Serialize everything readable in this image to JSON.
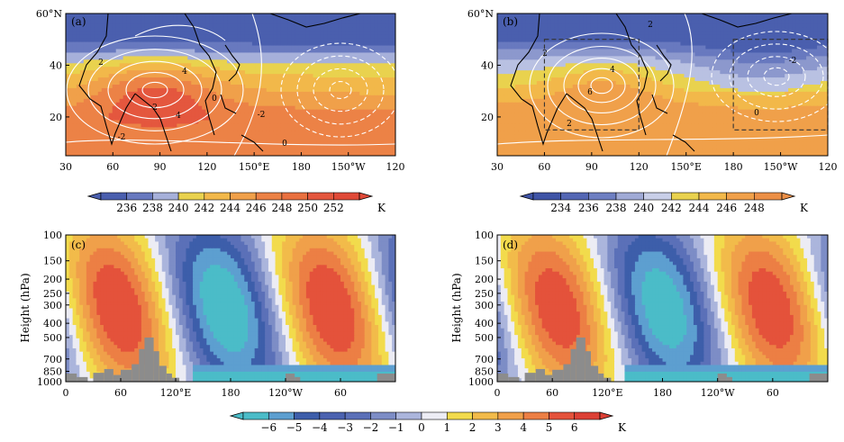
{
  "chart_data": [
    {
      "type": "heatmap",
      "panel_label": "(a)",
      "x_tick_labels": [
        "30",
        "60",
        "90",
        "120",
        "150°E",
        "180",
        "150°W",
        "120"
      ],
      "y_tick_labels": [
        "60°N",
        "40",
        "20"
      ],
      "xlim": [
        30,
        240
      ],
      "ylim": [
        5,
        60
      ],
      "fill_field": {
        "center": [
          85,
          30
        ],
        "peak": 252,
        "south_level": 248,
        "north_level": 236
      },
      "contour_labels": [
        "2",
        "4",
        "-2",
        "0",
        "-2",
        "0",
        "2",
        "4"
      ],
      "colorbar": {
        "ticks": [
          "236",
          "238",
          "240",
          "242",
          "244",
          "246",
          "248",
          "250",
          "252"
        ],
        "unit": "K"
      }
    },
    {
      "type": "heatmap",
      "panel_label": "(b)",
      "x_tick_labels": [
        "30",
        "60",
        "90",
        "120",
        "150°E",
        "180",
        "150°W",
        "120"
      ],
      "y_tick_labels": [
        "60°N",
        "40",
        "20"
      ],
      "xlim": [
        30,
        240
      ],
      "ylim": [
        5,
        60
      ],
      "fill_field": {
        "center": [
          90,
          32
        ],
        "peak": 248,
        "south_level": 246,
        "north_level": 234
      },
      "contour_labels": [
        "2",
        "6",
        "4",
        "2",
        "-2",
        "0",
        "2"
      ],
      "boxes": [
        {
          "lon": [
            60,
            120
          ],
          "lat": [
            15,
            50
          ]
        },
        {
          "lon": [
            180,
            240
          ],
          "lat": [
            15,
            50
          ]
        }
      ],
      "colorbar": {
        "ticks": [
          "234",
          "236",
          "238",
          "240",
          "242",
          "244",
          "246",
          "248"
        ],
        "unit": "K"
      }
    },
    {
      "type": "heatmap",
      "panel_label": "(c)",
      "x_tick_labels": [
        "0",
        "60",
        "120°E",
        "180",
        "120°W",
        "60"
      ],
      "y_tick_labels": [
        "100",
        "150",
        "200",
        "250",
        "300",
        "400",
        "500",
        "700",
        "850",
        "1000"
      ],
      "ylabel": "Height (hPa)",
      "xlim": [
        0,
        360
      ],
      "ylim": [
        1000,
        100
      ],
      "terrain_color": "#8c8c8c"
    },
    {
      "type": "heatmap",
      "panel_label": "(d)",
      "x_tick_labels": [
        "0",
        "60",
        "120°E",
        "180",
        "120°W",
        "60"
      ],
      "y_tick_labels": [
        "100",
        "150",
        "200",
        "250",
        "300",
        "400",
        "500",
        "700",
        "850",
        "1000"
      ],
      "ylabel": "Height (hPa)",
      "xlim": [
        0,
        360
      ],
      "ylim": [
        1000,
        100
      ],
      "terrain_color": "#8c8c8c"
    },
    {
      "type": "colorbar",
      "ticks": [
        "−6",
        "−5",
        "−4",
        "−3",
        "−2",
        "−1",
        "0",
        "1",
        "2",
        "3",
        "4",
        "5",
        "6"
      ],
      "unit": "K"
    }
  ],
  "palettes": {
    "top_a": [
      "#4a5fae",
      "#6879bf",
      "#a6b0da",
      "#e9d24e",
      "#f2b84a",
      "#f0a04a",
      "#ec8246",
      "#e4573e"
    ],
    "top_b": [
      "#4a5fae",
      "#6879bf",
      "#8c98cd",
      "#b9c1e2",
      "#e9d24e",
      "#f2b84a",
      "#f0a04a"
    ],
    "anom": [
      "#4bbcc8",
      "#5d9fd0",
      "#3d5eaa",
      "#5b70b8",
      "#7d8dc6",
      "#abb5dc",
      "#ececf4",
      "#f2db4c",
      "#f2bb4a",
      "#f0a04a",
      "#ec7f44",
      "#e4523b"
    ]
  }
}
